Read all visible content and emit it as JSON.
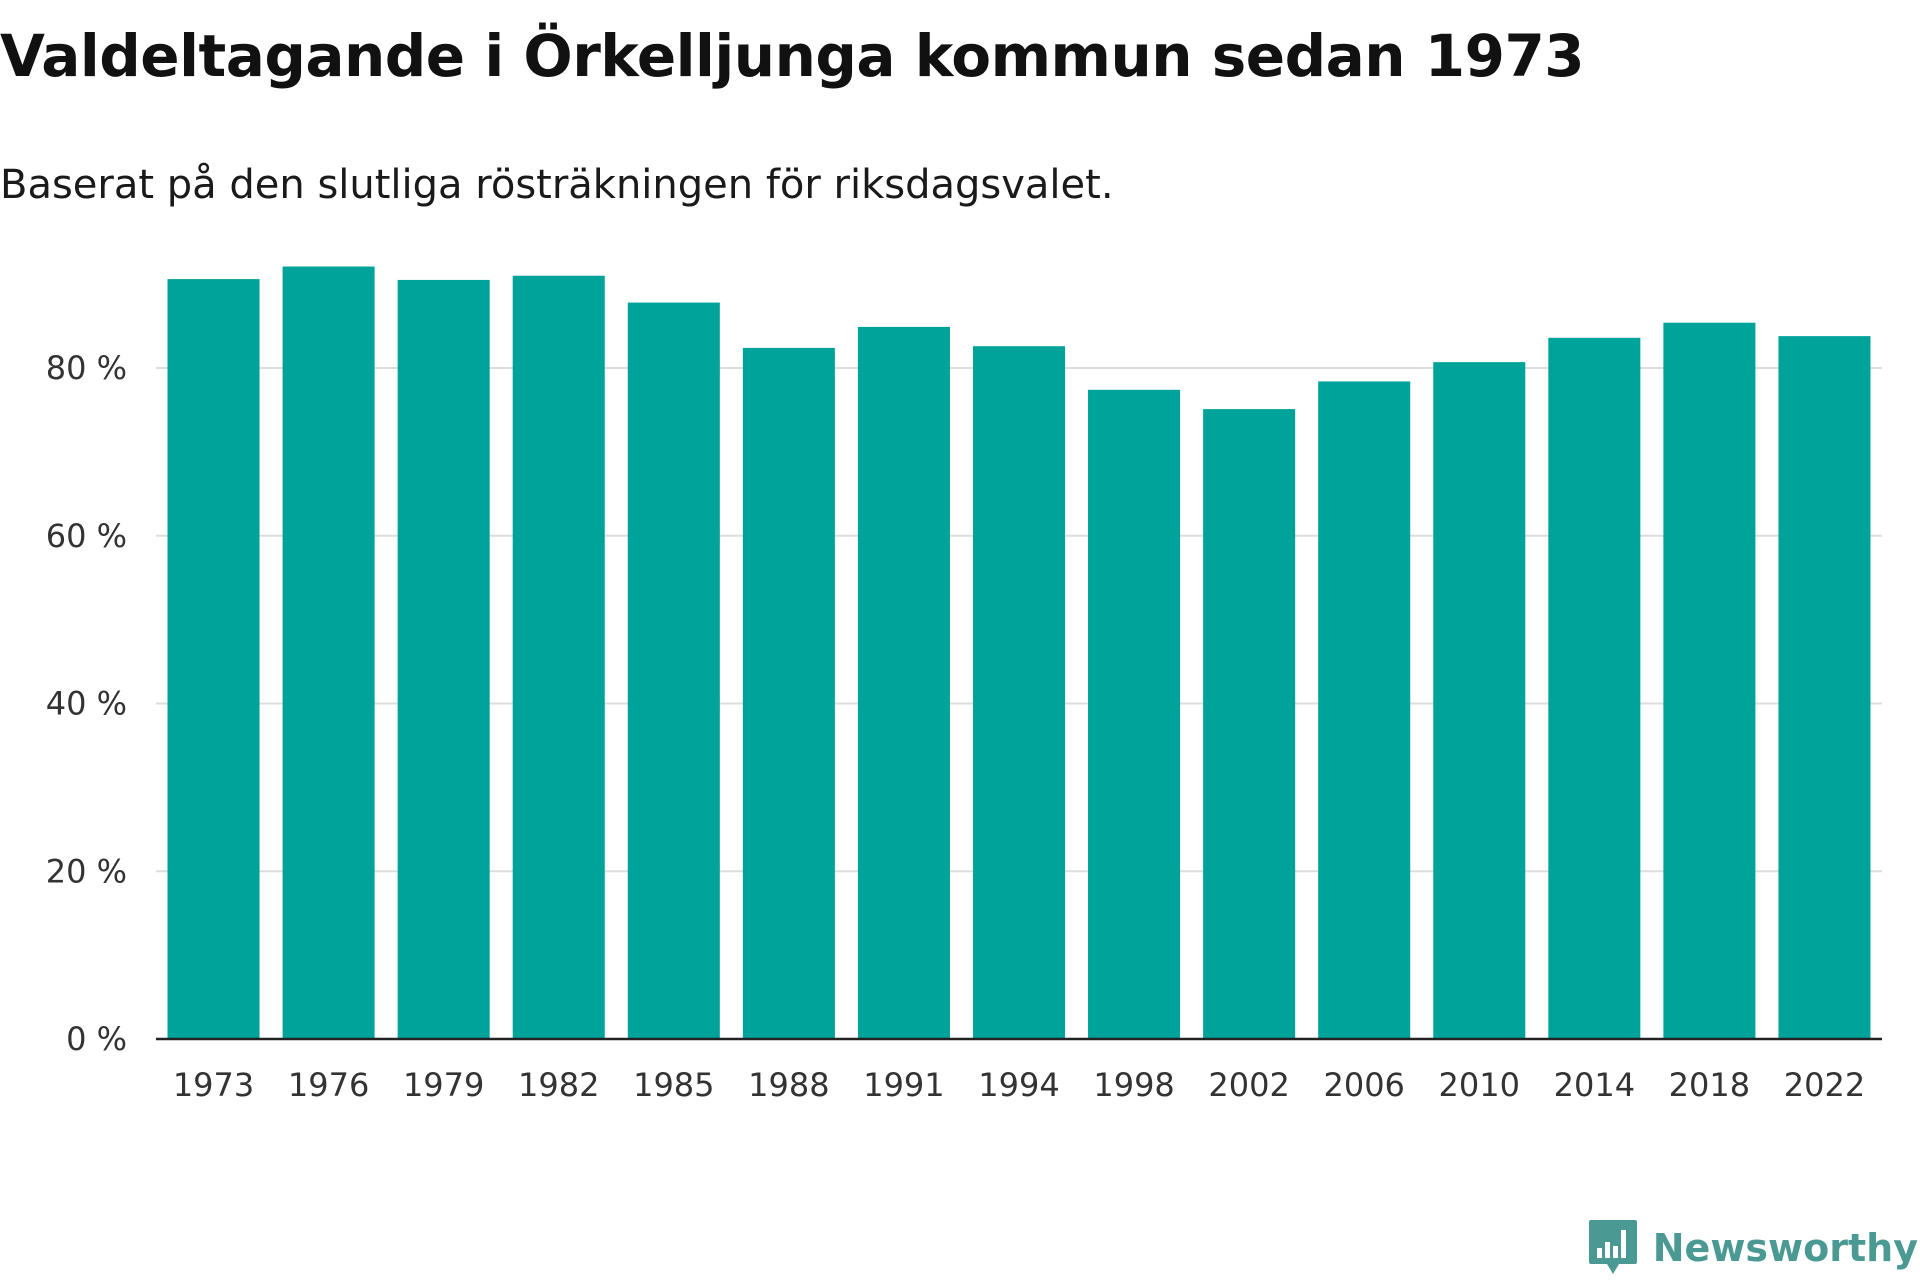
{
  "header": {
    "title": "Valdeltagande i Örkelljunga kommun sedan 1973",
    "subtitle": "Baserat på den slutliga rösträkningen för riksdagsvalet."
  },
  "colors": {
    "bar": "#00a39a",
    "grid": "#dddddd",
    "axis": "#222222",
    "brand": "#4a9a93"
  },
  "brand": {
    "name": "Newsworthy",
    "icon": "newsworthy-logo-icon"
  },
  "chart_data": {
    "type": "bar",
    "title": "Valdeltagande i Örkelljunga kommun sedan 1973",
    "subtitle": "Baserat på den slutliga rösträkningen för riksdagsvalet.",
    "xlabel": "",
    "ylabel": "",
    "ylim": [
      0,
      100
    ],
    "yticks": [
      0,
      20,
      40,
      60,
      80
    ],
    "ytick_labels": [
      "0 %",
      "20 %",
      "40 %",
      "60 %",
      "80 %"
    ],
    "grid": true,
    "categories": [
      "1973",
      "1976",
      "1979",
      "1982",
      "1985",
      "1988",
      "1991",
      "1994",
      "1998",
      "2002",
      "2006",
      "2010",
      "2014",
      "2018",
      "2022"
    ],
    "values": [
      90.6,
      92.1,
      90.5,
      91.0,
      87.8,
      82.4,
      84.9,
      82.6,
      77.4,
      75.1,
      78.4,
      80.7,
      83.6,
      85.4,
      83.8
    ]
  }
}
